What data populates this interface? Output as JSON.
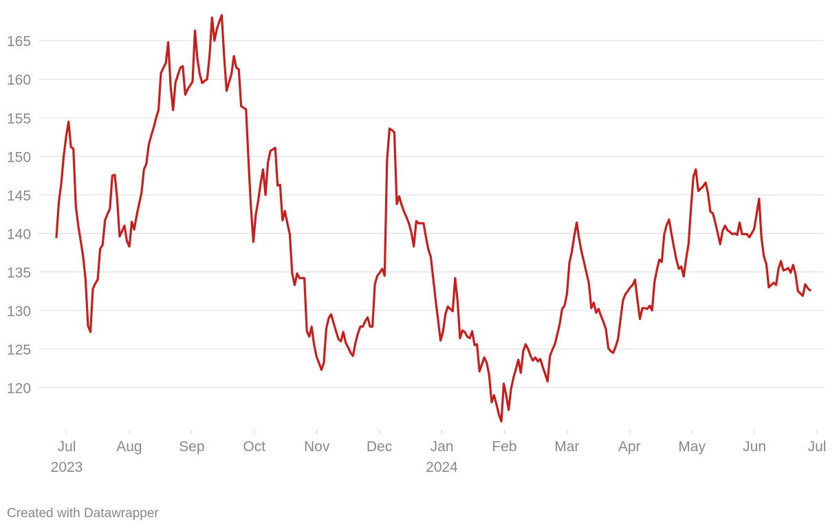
{
  "chart_data": {
    "type": "line",
    "color": "#c71e1d",
    "grid": true,
    "ylim": [
      114.5,
      168.5
    ],
    "yticks": [
      120,
      125,
      130,
      135,
      140,
      145,
      150,
      155,
      160,
      165
    ],
    "xticks": [
      {
        "label": "Jul",
        "year": "2023"
      },
      {
        "label": "Aug"
      },
      {
        "label": "Sep"
      },
      {
        "label": "Oct"
      },
      {
        "label": "Nov"
      },
      {
        "label": "Dec"
      },
      {
        "label": "Jan",
        "year": "2024"
      },
      {
        "label": "Feb"
      },
      {
        "label": "Mar"
      },
      {
        "label": "Apr"
      },
      {
        "label": "May"
      },
      {
        "label": "Jun"
      },
      {
        "label": "Jul"
      }
    ],
    "values": [
      139.5,
      144,
      146.5,
      150,
      152.5,
      154.5,
      151.2,
      151,
      143.5,
      141,
      139,
      137,
      134,
      128,
      127.2,
      132.8,
      133.5,
      134,
      138,
      138.5,
      141.7,
      142.5,
      143.2,
      147.5,
      147.6,
      144.5,
      139.6,
      140.3,
      141,
      139,
      138.3,
      141.5,
      140.5,
      142.3,
      143.8,
      145.2,
      148.3,
      149,
      151.5,
      152.7,
      153.7,
      155,
      156,
      160.8,
      161.5,
      162.1,
      164.8,
      159,
      156,
      159.6,
      160.6,
      161.5,
      161.7,
      158,
      158.7,
      159.2,
      159.7,
      166.3,
      162.6,
      160.6,
      159.5,
      159.8,
      160,
      163,
      168,
      165,
      166.5,
      167.5,
      168.3,
      163,
      158.5,
      159.6,
      160.7,
      163,
      161.5,
      161.3,
      156.5,
      156.3,
      156.1,
      149.5,
      143.5,
      138.9,
      142.4,
      144.2,
      146.5,
      148.3,
      145,
      149.2,
      150.7,
      150.9,
      151.1,
      146.2,
      146.3,
      141.7,
      142.9,
      141.3,
      139.9,
      134.8,
      133.3,
      134.8,
      134.2,
      134.2,
      134.2,
      127.3,
      126.6,
      127.9,
      125.5,
      124,
      123.2,
      122.3,
      123.2,
      127.6,
      129,
      129.5,
      128.4,
      127.3,
      126.3,
      126,
      127.2,
      125.8,
      125.2,
      124.5,
      124.1,
      125.8,
      127,
      127.9,
      127.9,
      128.6,
      129.1,
      127.9,
      127.9,
      133.4,
      134.5,
      134.9,
      135.4,
      134.5,
      149.5,
      153.6,
      153.4,
      153.1,
      143.8,
      144.8,
      143.7,
      142.8,
      142.1,
      141.3,
      140.1,
      138.3,
      141.6,
      141.3,
      141.3,
      141.3,
      139.5,
      137.9,
      136.9,
      134.1,
      131.3,
      128.7,
      126.1,
      127.2,
      129.5,
      130.5,
      130.2,
      129.9,
      134.2,
      131.2,
      126.4,
      127.4,
      127.2,
      126.6,
      126.4,
      127.3,
      125.5,
      125.6,
      122.1,
      123,
      123.9,
      123.2,
      121.6,
      118.1,
      119,
      117.8,
      116.5,
      115.6,
      120.5,
      119,
      117.1,
      119.8,
      121.3,
      122.4,
      123.6,
      121.9,
      124.7,
      125.6,
      125,
      124.1,
      123.5,
      123.9,
      123.4,
      123.7,
      122.7,
      121.8,
      120.8,
      124.1,
      124.9,
      125.6,
      126.9,
      128.2,
      130.2,
      130.6,
      132.2,
      136.2,
      137.6,
      139.7,
      141.4,
      139.3,
      137.6,
      136.3,
      134.9,
      133.5,
      130.3,
      131,
      129.7,
      130.2,
      129.3,
      128.5,
      127.6,
      125.1,
      124.7,
      124.5,
      125.3,
      126.3,
      128.8,
      131.3,
      132.1,
      132.5,
      133,
      133.3,
      134,
      131.3,
      128.9,
      130.3,
      130.3,
      130.2,
      130.6,
      130,
      133.7,
      135.3,
      136.6,
      136.3,
      139.9,
      141.1,
      141.8,
      139.9,
      138.2,
      136.6,
      135.4,
      135.7,
      134.4,
      136.7,
      138.6,
      143.3,
      147.4,
      148.3,
      145.5,
      145.8,
      146.1,
      146.6,
      145.2,
      142.8,
      142.6,
      141.4,
      140,
      138.6,
      140.3,
      141,
      140.4,
      140.2,
      139.9,
      140,
      139.8,
      141.4,
      139.9,
      139.9,
      139.9,
      139.5,
      140,
      140.6,
      142.5,
      144.5,
      139.4,
      137,
      136,
      133,
      133.3,
      133.6,
      133.3,
      135.4,
      136.4,
      135.2,
      135.3,
      135.5,
      134.9,
      135.9,
      134.7,
      132.5,
      132.2,
      131.9,
      133.4,
      132.9,
      132.6
    ],
    "source": "Created with Datawrapper"
  }
}
